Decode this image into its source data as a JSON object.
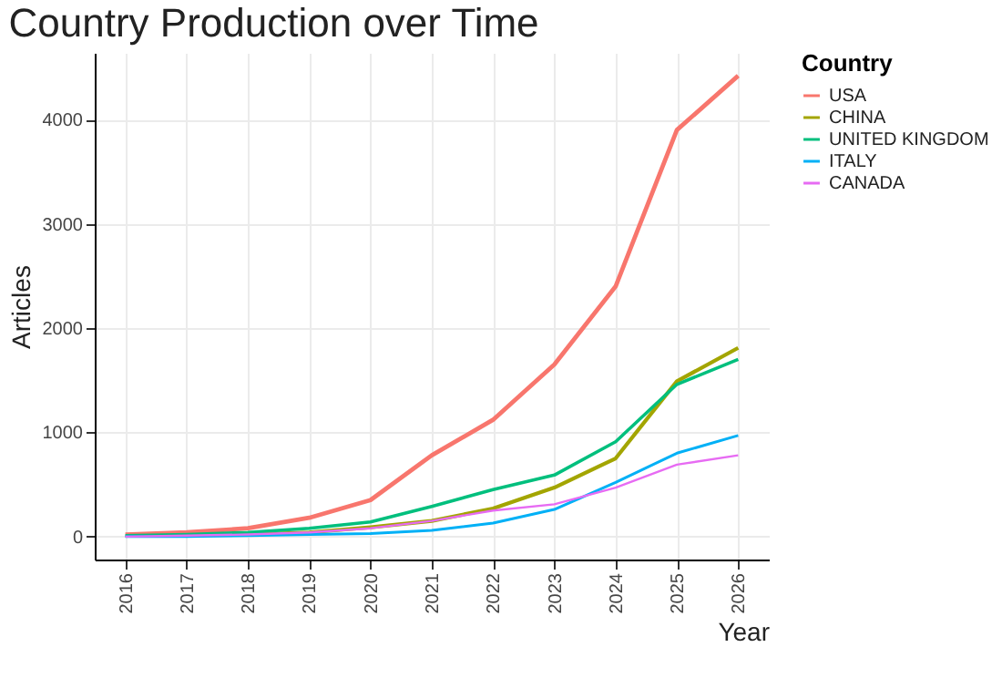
{
  "chart_data": {
    "type": "line",
    "title": "Country Production over Time",
    "xlabel": "Year",
    "ylabel": "Articles",
    "legend_title": "Country",
    "x": [
      2016,
      2017,
      2018,
      2019,
      2020,
      2021,
      2022,
      2023,
      2024,
      2025,
      2026
    ],
    "series": [
      {
        "name": "USA",
        "color": "#f8766d",
        "values": [
          20,
          40,
          80,
          180,
          350,
          780,
          1120,
          1650,
          2400,
          3900,
          4420
        ]
      },
      {
        "name": "CHINA",
        "color": "#a3a500",
        "values": [
          null,
          null,
          20,
          40,
          90,
          150,
          270,
          470,
          750,
          1490,
          1810
        ]
      },
      {
        "name": "UNITED KINGDOM",
        "color": "#00bf7d",
        "values": [
          10,
          20,
          40,
          80,
          140,
          290,
          450,
          590,
          910,
          1460,
          1700
        ]
      },
      {
        "name": "ITALY",
        "color": "#00b0f6",
        "values": [
          0,
          0,
          10,
          20,
          30,
          60,
          130,
          260,
          520,
          800,
          970
        ]
      },
      {
        "name": "CANADA",
        "color": "#e76bf3",
        "values": [
          0,
          10,
          20,
          40,
          80,
          150,
          250,
          310,
          470,
          690,
          780
        ]
      }
    ],
    "xlim": [
      2015.5,
      2026.5
    ],
    "xticks": [
      2016,
      2017,
      2018,
      2019,
      2020,
      2021,
      2022,
      2023,
      2024,
      2025,
      2026
    ],
    "ylim": [
      -220,
      4640
    ],
    "yticks": [
      0,
      1000,
      2000,
      3000,
      4000
    ],
    "grid": true,
    "legend": "right",
    "marker": "none",
    "line_style": "solid"
  }
}
